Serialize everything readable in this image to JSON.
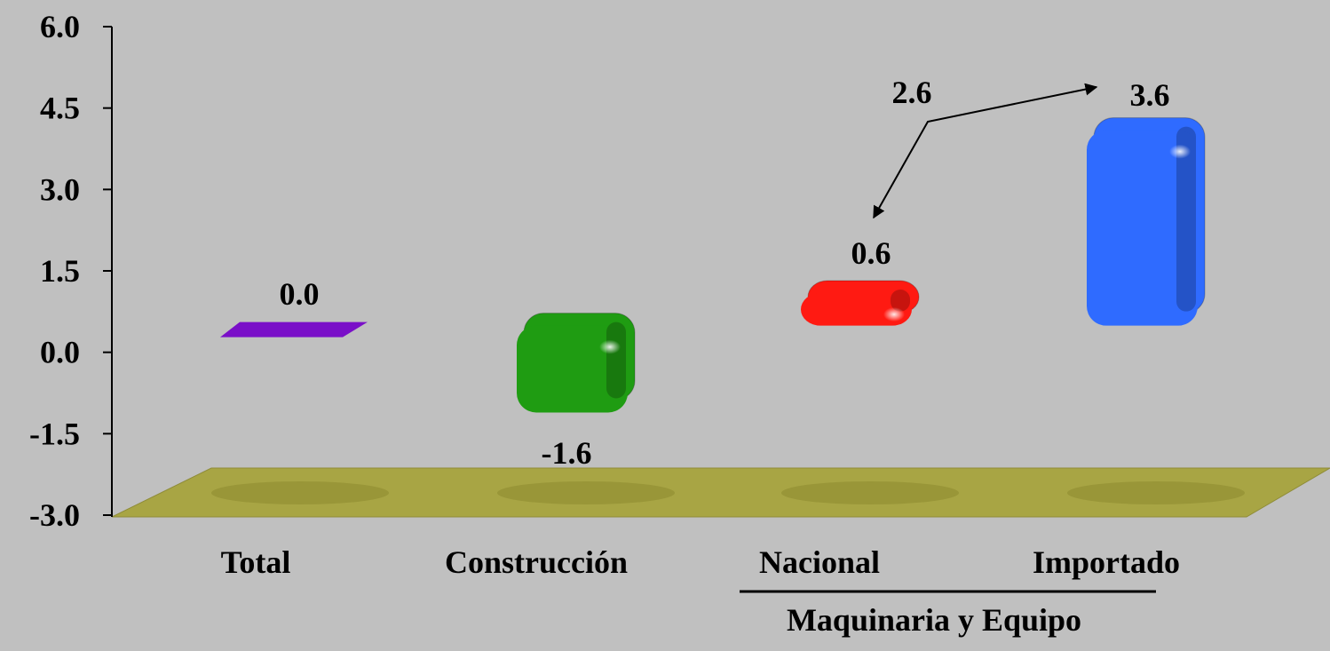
{
  "chart_data": {
    "type": "bar",
    "title": "",
    "xlabel": "",
    "ylabel": "",
    "categories": [
      "Total",
      "Construcción",
      "Nacional",
      "Importado"
    ],
    "values": [
      0.0,
      -1.6,
      0.6,
      3.6
    ],
    "value_labels": [
      "0.0",
      "-1.6",
      "0.6",
      "3.6"
    ],
    "bar_colors": [
      "#7a0fc8",
      "#1f9c12",
      "#ff1a12",
      "#2f6bff"
    ],
    "ylim": [
      -3.0,
      6.0
    ],
    "yticks": [
      "-3.0",
      "-1.5",
      "0.0",
      "1.5",
      "3.0",
      "4.5",
      "6.0"
    ],
    "grid": false,
    "legend": "none",
    "floor_color": "#a8a544",
    "group": {
      "label": "Maquinaria y Equipo",
      "members": [
        "Nacional",
        "Importado"
      ]
    },
    "annotation": {
      "text": "2.6",
      "arrows_to": [
        "Nacional",
        "Importado"
      ]
    }
  }
}
